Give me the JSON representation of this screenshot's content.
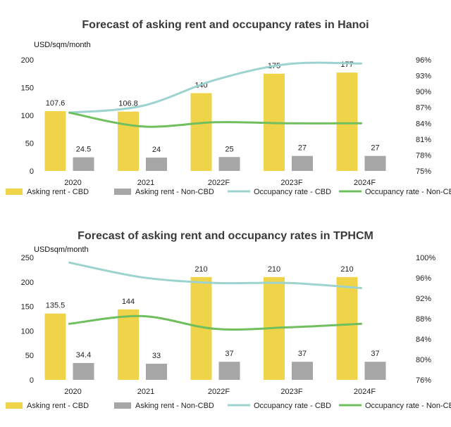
{
  "colors": {
    "asking_cbd": "#efd44a",
    "asking_noncbd": "#a6a6a6",
    "occ_cbd": "#9dd3cf",
    "occ_noncbd": "#6fbf5e",
    "title": "#3a3a3a",
    "axis_text": "#222222"
  },
  "chart_data": [
    {
      "type": "bar",
      "title": "Forecast of asking rent and occupancy rates in Hanoi",
      "ylabel": "USD/sqm/month",
      "categories": [
        "2020",
        "2021",
        "2022F",
        "2023F",
        "2024F"
      ],
      "ylim": [
        0,
        200
      ],
      "yticks": [
        0,
        50,
        100,
        150,
        200
      ],
      "ytick_labels": [
        "0",
        "50",
        "100",
        "150",
        "200"
      ],
      "y2lim": [
        75,
        96
      ],
      "y2ticks": [
        75,
        78,
        81,
        84,
        87,
        90,
        93,
        96
      ],
      "y2tick_labels": [
        "75%",
        "78%",
        "81%",
        "84%",
        "87%",
        "90%",
        "93%",
        "96%"
      ],
      "series": [
        {
          "name": "Asking rent - CBD",
          "kind": "bar",
          "values": [
            107.6,
            106.8,
            140,
            175,
            177
          ],
          "labels": [
            "107.6",
            "106.8",
            "140",
            "175",
            "177"
          ]
        },
        {
          "name": "Asking rent - Non-CBD",
          "kind": "bar",
          "values": [
            24.5,
            24,
            25,
            27,
            27
          ],
          "labels": [
            "24.5",
            "24",
            "25",
            "27",
            "27"
          ]
        },
        {
          "name": "Occupancy rate - CBD",
          "kind": "line",
          "axis": "right",
          "values": [
            86.0,
            87.3,
            92.2,
            95.2,
            95.3
          ]
        },
        {
          "name": "Occupancy rate - Non-CBD",
          "kind": "line",
          "axis": "right",
          "values": [
            86.0,
            83.4,
            84.2,
            84.0,
            84.0
          ]
        }
      ],
      "legend_position": "bottom"
    },
    {
      "type": "bar",
      "title": "Forecast of asking rent and occupancy rates in TPHCM",
      "ylabel": "USDsqm/month",
      "categories": [
        "2020",
        "2021",
        "2022F",
        "2023F",
        "2024F"
      ],
      "ylim": [
        0,
        250
      ],
      "yticks": [
        0,
        50,
        100,
        150,
        200,
        250
      ],
      "ytick_labels": [
        "0",
        "50",
        "100",
        "150",
        "200",
        "250"
      ],
      "y2lim": [
        76,
        100
      ],
      "y2ticks": [
        76,
        80,
        84,
        88,
        92,
        96,
        100
      ],
      "y2tick_labels": [
        "76%",
        "80%",
        "84%",
        "88%",
        "92%",
        "96%",
        "100%"
      ],
      "series": [
        {
          "name": "Asking rent - CBD",
          "kind": "bar",
          "values": [
            135.5,
            144,
            210,
            210,
            210
          ],
          "labels": [
            "135.5",
            "144",
            "210",
            "210",
            "210"
          ]
        },
        {
          "name": "Asking rent - Non-CBD",
          "kind": "bar",
          "values": [
            34.4,
            33,
            37,
            37,
            37
          ],
          "labels": [
            "34.4",
            "33",
            "37",
            "37",
            "37"
          ]
        },
        {
          "name": "Occupancy rate - CBD",
          "kind": "line",
          "axis": "right",
          "values": [
            99.0,
            96.1,
            95.0,
            95.0,
            94.0
          ]
        },
        {
          "name": "Occupancy rate - Non-CBD",
          "kind": "line",
          "axis": "right",
          "values": [
            87.0,
            88.5,
            86.0,
            86.3,
            87.0
          ]
        }
      ],
      "legend_position": "bottom"
    }
  ]
}
